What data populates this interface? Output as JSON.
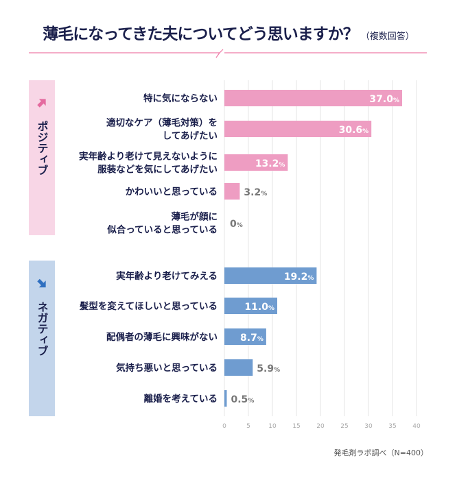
{
  "title": {
    "main": "薄毛になってきた夫についてどう思いますか？",
    "sub": "（複数回答）"
  },
  "source": "発毛剤ラボ調べ（N=400）",
  "colors": {
    "title": "#1a1f4b",
    "accent_line": "#ee7aa6",
    "positive_bar": "#ee9dc2",
    "positive_panel": "#f8d6e6",
    "positive_arrow": "#e46a9f",
    "negative_bar": "#6f9cd0",
    "negative_panel": "#c3d5eb",
    "negative_arrow": "#2f6fc0",
    "grid": "#e6e6e6"
  },
  "chart_data": {
    "type": "bar",
    "orientation": "horizontal",
    "unit": "%",
    "xlim": [
      0,
      40
    ],
    "xticks": [
      0,
      5,
      10,
      15,
      20,
      25,
      30,
      35,
      40
    ],
    "grid": true,
    "groups": [
      {
        "name": "ポジティブ",
        "icon": "arrow-up-right-icon",
        "categories": [
          "特に気にならない",
          "適切なケア（薄毛対策）を\nしてあげたい",
          "実年齢より老けて見えないように\n服装などを気にしてあげたい",
          "かわいいと思っている",
          "薄毛が顔に\n似合っていると思っている"
        ],
        "values": [
          37.0,
          30.6,
          13.2,
          3.2,
          0
        ]
      },
      {
        "name": "ネガティブ",
        "icon": "arrow-down-right-icon",
        "categories": [
          "実年齢より老けてみえる",
          "髪型を変えてほしいと思っている",
          "配偶者の薄毛に興味がない",
          "気持ち悪いと思っている",
          "離婚を考えている"
        ],
        "values": [
          19.2,
          11.0,
          8.7,
          5.9,
          0.5
        ]
      }
    ]
  }
}
